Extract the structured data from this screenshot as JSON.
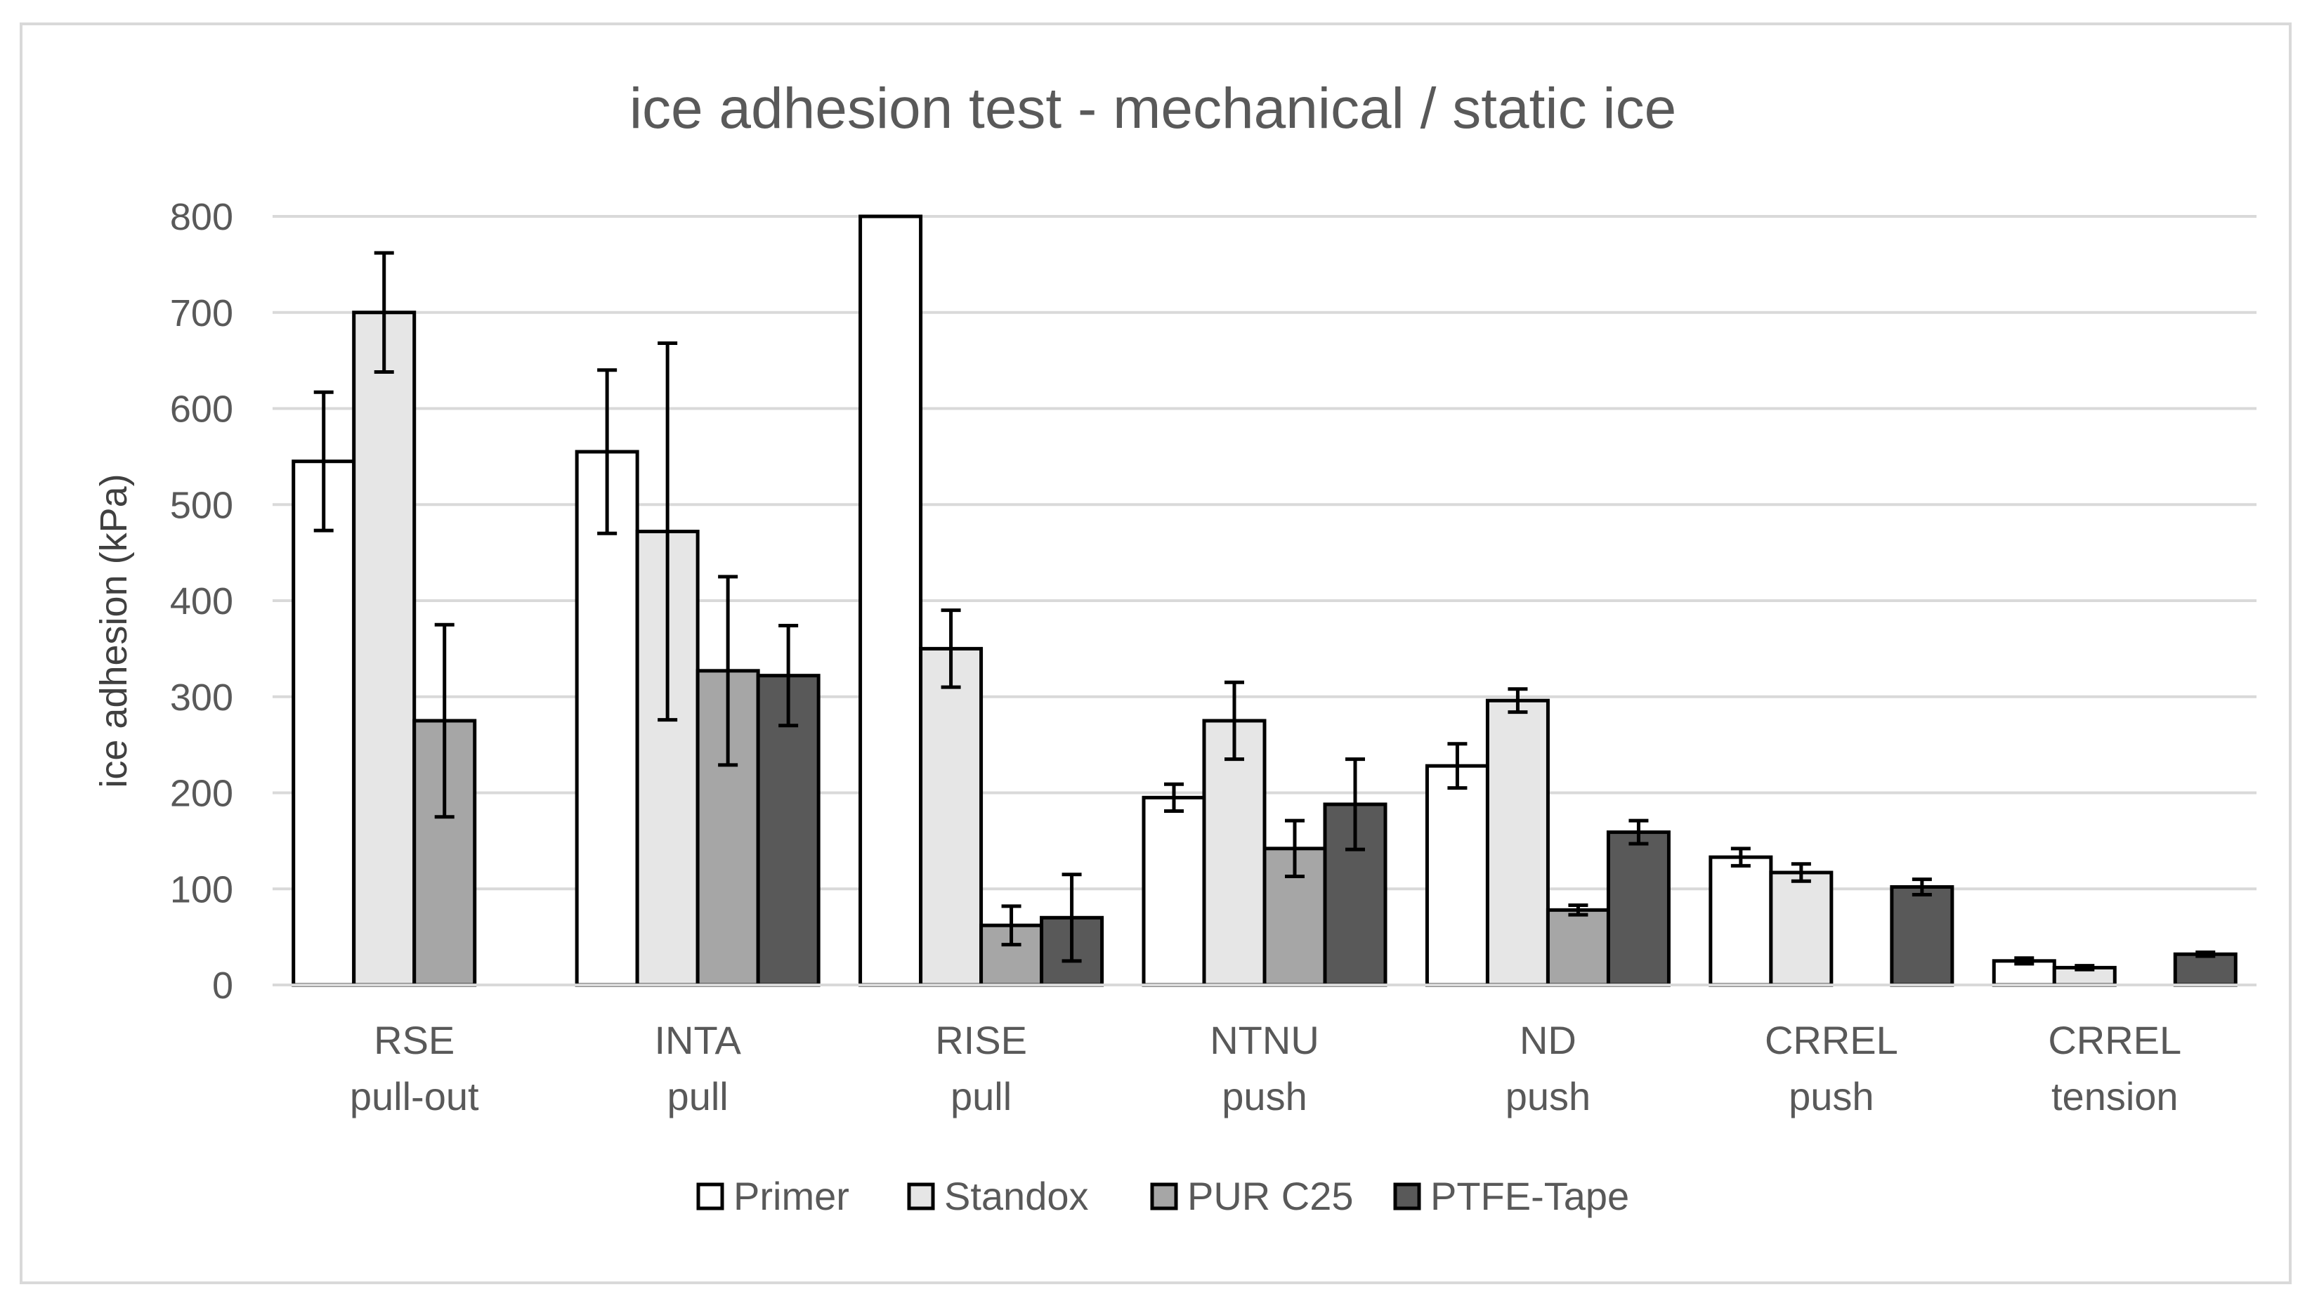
{
  "chart_data": {
    "type": "bar",
    "title": "ice adhesion test - mechanical / static ice",
    "xlabel": "",
    "ylabel": "ice adhesion (kPa)",
    "ylim": [
      0,
      800
    ],
    "yticks": [
      0,
      100,
      200,
      300,
      400,
      500,
      600,
      700,
      800
    ],
    "grid": true,
    "legend_position": "bottom",
    "categories": [
      [
        "RSE",
        "pull-out"
      ],
      [
        "INTA",
        "pull"
      ],
      [
        "RISE",
        "pull"
      ],
      [
        "NTNU",
        "push"
      ],
      [
        "ND",
        "push"
      ],
      [
        "CRREL",
        "push"
      ],
      [
        "CRREL",
        "tension"
      ]
    ],
    "series": [
      {
        "name": "Primer",
        "color": "#ffffff",
        "values": [
          545,
          555,
          800,
          195,
          228,
          133,
          25
        ],
        "errors": [
          72,
          85,
          null,
          14,
          23,
          9,
          3
        ]
      },
      {
        "name": "Standox",
        "color": "#e6e6e6",
        "values": [
          700,
          472,
          350,
          275,
          296,
          117,
          18
        ],
        "errors": [
          62,
          196,
          40,
          40,
          12,
          9,
          2
        ]
      },
      {
        "name": "PUR C25",
        "color": "#a6a6a6",
        "values": [
          275,
          327,
          62,
          142,
          78,
          0,
          0
        ],
        "errors": [
          100,
          98,
          20,
          29,
          5,
          null,
          null
        ]
      },
      {
        "name": "PTFE-Tape",
        "color": "#595959",
        "values": [
          0,
          322,
          70,
          188,
          159,
          102,
          32
        ],
        "errors": [
          null,
          52,
          45,
          47,
          12,
          8,
          2
        ]
      }
    ]
  }
}
